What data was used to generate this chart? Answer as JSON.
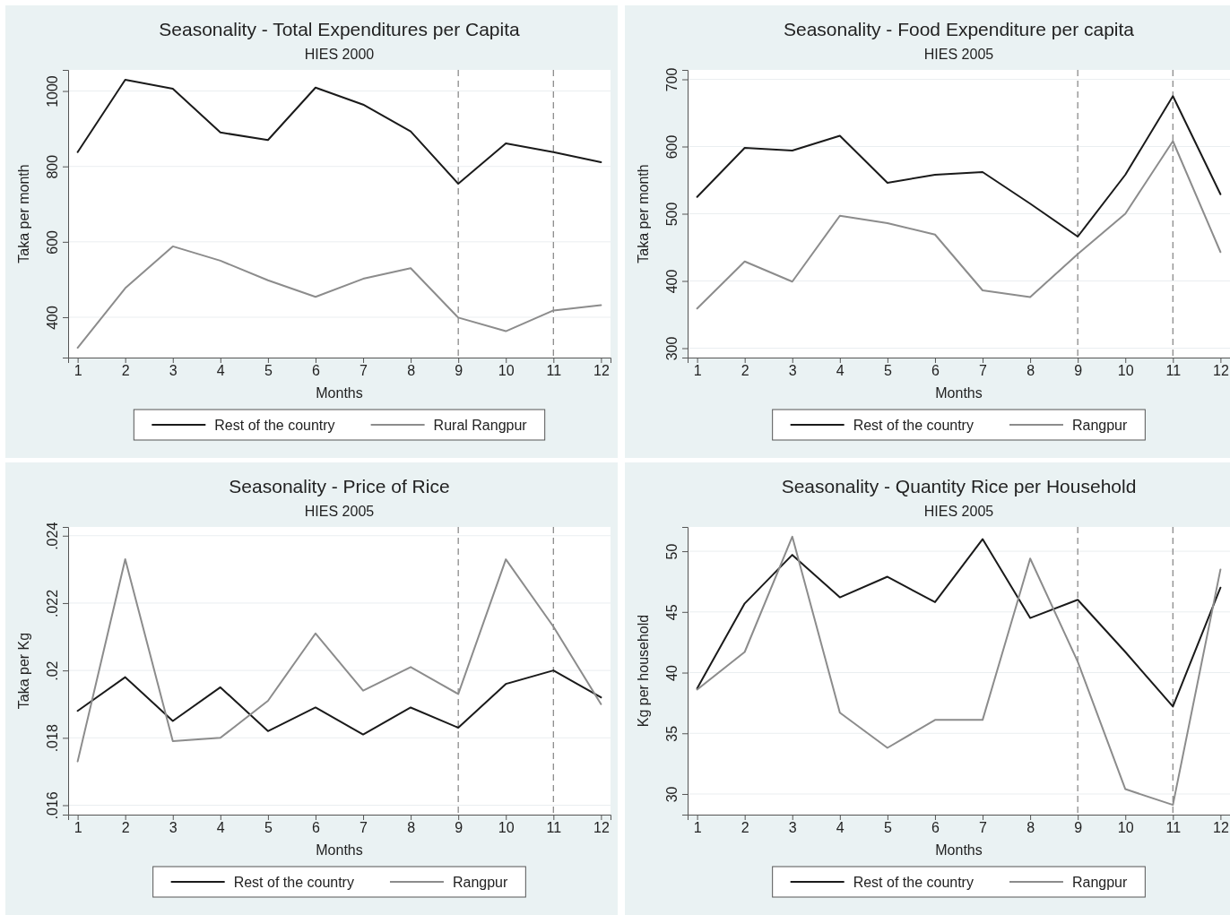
{
  "chart_data": [
    {
      "type": "line",
      "title": "Seasonality - Total Expenditures per Capita",
      "subtitle": "HIES 2000",
      "xlabel": "Months",
      "ylabel": "Taka per month",
      "x": [
        1,
        2,
        3,
        4,
        5,
        6,
        7,
        8,
        9,
        10,
        11,
        12
      ],
      "xlim": [
        0.8,
        12.2
      ],
      "xticks": [
        1,
        2,
        3,
        4,
        5,
        6,
        7,
        8,
        9,
        10,
        11,
        12
      ],
      "ylim": [
        293,
        1056
      ],
      "yticks": [
        400,
        600,
        800,
        1000
      ],
      "grid": "y",
      "legend": "bottom",
      "line_style": "solid",
      "series": [
        {
          "name": "Rest of the country",
          "color": "#1a1a1a",
          "values": [
            838,
            1030,
            1006,
            890,
            870,
            1009,
            964,
            893,
            754,
            861,
            838,
            811
          ]
        },
        {
          "name": "Rural Rangpur",
          "color": "#8c8c8c",
          "values": [
            319,
            477,
            588,
            550,
            498,
            454,
            502,
            530,
            399,
            363,
            418,
            432
          ]
        }
      ],
      "ref_lines": [
        {
          "axis": "x",
          "value": 9,
          "color": "#8c8c8c",
          "line_style": "dashed"
        },
        {
          "axis": "x",
          "value": 11,
          "color": "#8c8c8c",
          "line_style": "dashed"
        }
      ]
    },
    {
      "type": "line",
      "title": "Seasonality - Food Expenditure per capita",
      "subtitle": "HIES 2005",
      "xlabel": "Months",
      "ylabel": "Taka per month",
      "x": [
        1,
        2,
        3,
        4,
        5,
        6,
        7,
        8,
        9,
        10,
        11,
        12
      ],
      "xlim": [
        0.8,
        12.2
      ],
      "xticks": [
        1,
        2,
        3,
        4,
        5,
        6,
        7,
        8,
        9,
        10,
        11,
        12
      ],
      "ylim": [
        286,
        714
      ],
      "yticks": [
        300,
        400,
        500,
        600,
        700
      ],
      "grid": "y",
      "legend": "bottom",
      "line_style": "solid",
      "series": [
        {
          "name": "Rest of the country",
          "color": "#1a1a1a",
          "values": [
            525,
            598,
            594,
            616,
            546,
            558,
            562,
            515,
            466,
            558,
            675,
            529
          ]
        },
        {
          "name": "Rangpur",
          "color": "#8c8c8c",
          "values": [
            359,
            429,
            399,
            497,
            486,
            469,
            386,
            376,
            440,
            500,
            608,
            443
          ]
        }
      ],
      "ref_lines": [
        {
          "axis": "x",
          "value": 9,
          "color": "#8c8c8c",
          "line_style": "dashed"
        },
        {
          "axis": "x",
          "value": 11,
          "color": "#8c8c8c",
          "line_style": "dashed"
        }
      ]
    },
    {
      "type": "line",
      "title": "Seasonality - Price of Rice",
      "subtitle": "HIES 2005",
      "xlabel": "Months",
      "ylabel": "Taka per Kg",
      "x": [
        1,
        2,
        3,
        4,
        5,
        6,
        7,
        8,
        9,
        10,
        11,
        12
      ],
      "xlim": [
        0.8,
        12.2
      ],
      "xticks": [
        1,
        2,
        3,
        4,
        5,
        6,
        7,
        8,
        9,
        10,
        11,
        12
      ],
      "ylim": [
        0.01572,
        0.02426
      ],
      "yticks": [
        {
          "value": 0.016,
          "label": ".016"
        },
        {
          "value": 0.018,
          "label": ".018"
        },
        {
          "value": 0.02,
          "label": ".02"
        },
        {
          "value": 0.022,
          "label": ".022"
        },
        {
          "value": 0.024,
          "label": ".024"
        }
      ],
      "grid": "y",
      "legend": "bottom",
      "line_style": "solid",
      "series": [
        {
          "name": "Rest of the country",
          "color": "#1a1a1a",
          "values": [
            0.0188,
            0.0198,
            0.0185,
            0.0195,
            0.0182,
            0.0189,
            0.0181,
            0.0189,
            0.0183,
            0.0196,
            0.02,
            0.0192
          ]
        },
        {
          "name": "Rangpur",
          "color": "#8c8c8c",
          "values": [
            0.0173,
            0.0233,
            0.0179,
            0.018,
            0.0191,
            0.0211,
            0.0194,
            0.0201,
            0.0193,
            0.0233,
            0.0213,
            0.019
          ]
        }
      ],
      "ref_lines": [
        {
          "axis": "x",
          "value": 9,
          "color": "#8c8c8c",
          "line_style": "dashed"
        },
        {
          "axis": "x",
          "value": 11,
          "color": "#8c8c8c",
          "line_style": "dashed"
        }
      ]
    },
    {
      "type": "line",
      "title": "Seasonality - Quantity Rice per Household",
      "subtitle": "HIES 2005",
      "xlabel": "Months",
      "ylabel": "Kg per household",
      "x": [
        1,
        2,
        3,
        4,
        5,
        6,
        7,
        8,
        9,
        10,
        11,
        12
      ],
      "xlim": [
        0.8,
        12.2
      ],
      "xticks": [
        1,
        2,
        3,
        4,
        5,
        6,
        7,
        8,
        9,
        10,
        11,
        12
      ],
      "ylim": [
        28.3,
        52
      ],
      "yticks": [
        30,
        35,
        40,
        45,
        50
      ],
      "grid": "y",
      "legend": "bottom",
      "line_style": "solid",
      "series": [
        {
          "name": "Rest of the country",
          "color": "#1a1a1a",
          "values": [
            38.7,
            45.7,
            49.7,
            46.2,
            47.9,
            45.8,
            51.0,
            44.5,
            46.0,
            41.7,
            37.2,
            47.0
          ]
        },
        {
          "name": "Rangpur",
          "color": "#8c8c8c",
          "values": [
            38.6,
            41.7,
            51.2,
            36.7,
            33.8,
            36.1,
            36.1,
            49.4,
            40.9,
            30.4,
            29.1,
            48.5
          ]
        }
      ],
      "ref_lines": [
        {
          "axis": "x",
          "value": 9,
          "color": "#8c8c8c",
          "line_style": "dashed"
        },
        {
          "axis": "x",
          "value": 11,
          "color": "#8c8c8c",
          "line_style": "dashed"
        }
      ]
    }
  ]
}
